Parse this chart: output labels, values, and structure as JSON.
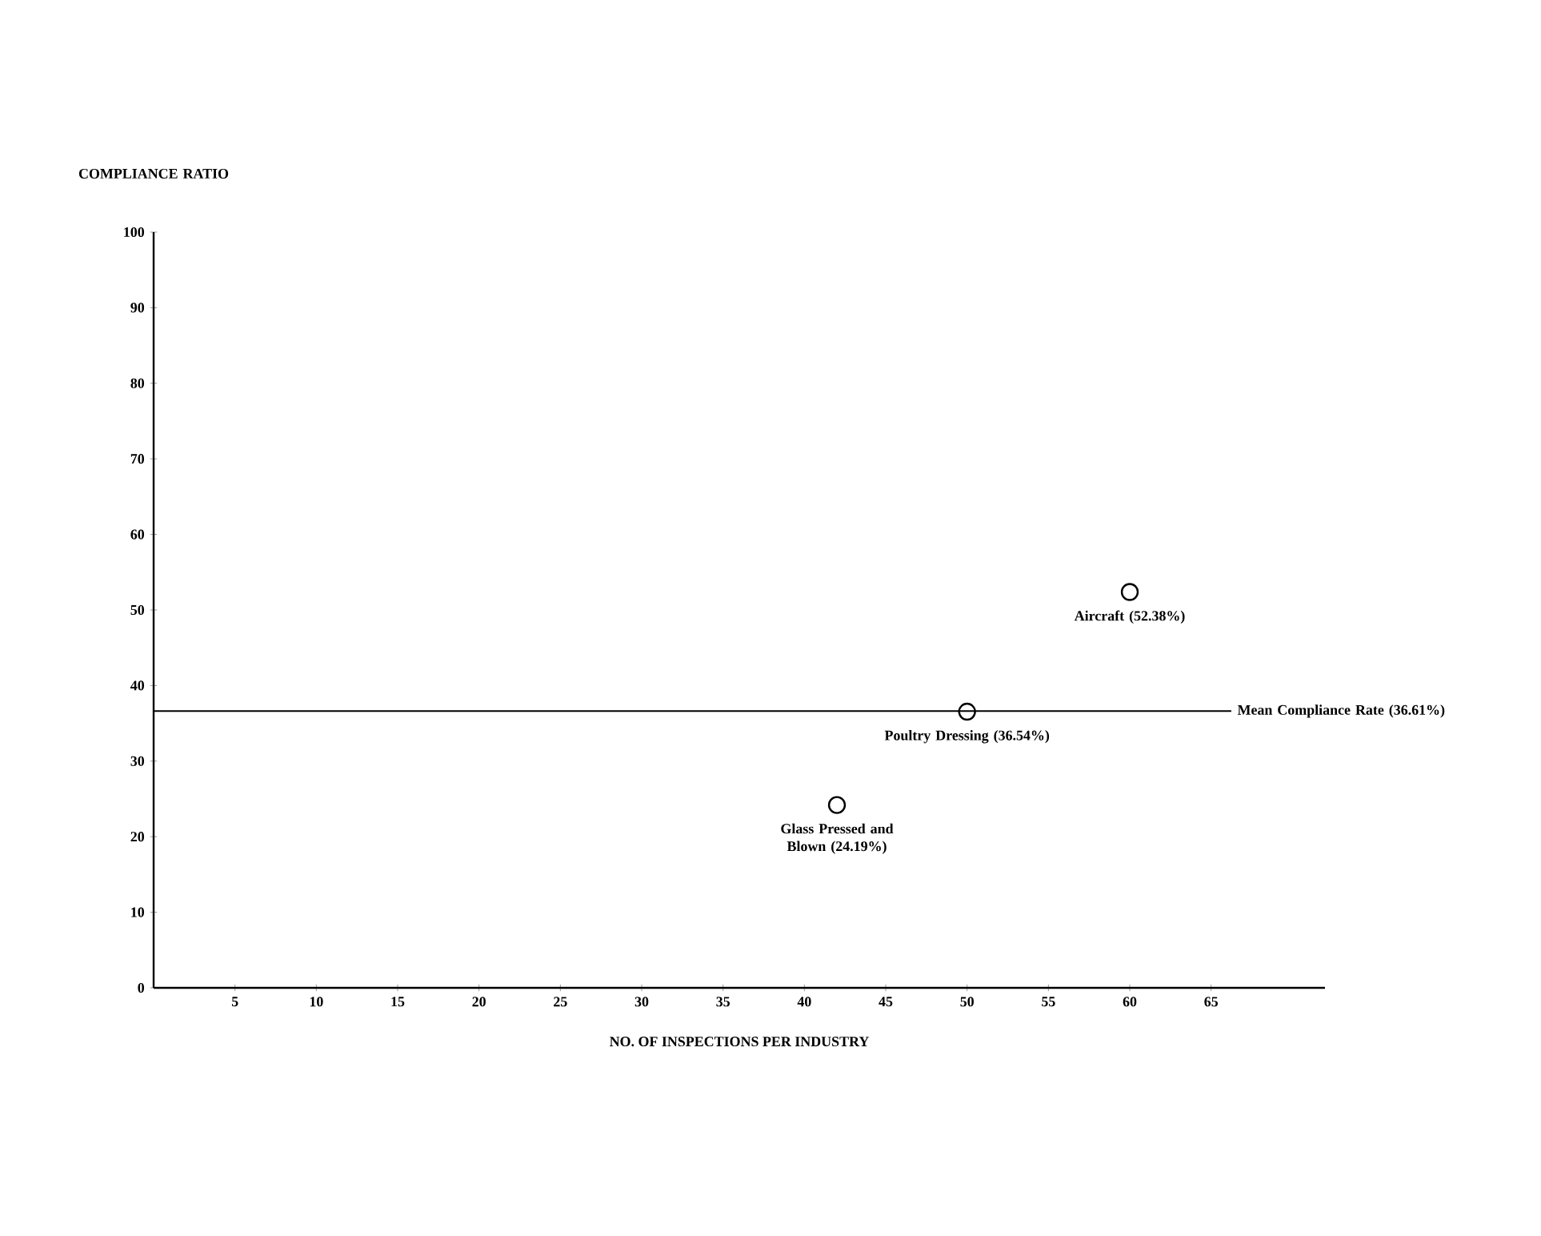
{
  "chart_data": {
    "type": "scatter",
    "xlabel": "NO. OF INSPECTIONS PER INDUSTRY",
    "ylabel": "COMPLIANCE RATIO",
    "x": [
      60,
      50,
      42
    ],
    "values": [
      52.38,
      36.54,
      24.19
    ],
    "color": "#000000",
    "marker": "circle",
    "xlim": [
      0,
      72
    ],
    "ylim": [
      0,
      100
    ],
    "xticks": [
      5,
      10,
      15,
      20,
      25,
      30,
      35,
      40,
      45,
      50,
      55,
      60,
      65
    ],
    "yticks": [
      0,
      10,
      20,
      30,
      40,
      50,
      60,
      70,
      80,
      90,
      100
    ],
    "grid": false,
    "annotations": [
      {
        "text": "Aircraft (52.38%)",
        "x": 60,
        "y": 52.38
      },
      {
        "text": "Poultry Dressing (36.54%)",
        "x": 50,
        "y": 36.54
      },
      {
        "text": "Glass Pressed and Blown (24.19%)",
        "x": 42,
        "y": 24.19
      }
    ],
    "ref_lines": [
      {
        "axis": "y",
        "value": 36.61,
        "label": "Mean Compliance Rate (36.61%)",
        "color": "#000000",
        "line_style": "solid"
      }
    ]
  }
}
